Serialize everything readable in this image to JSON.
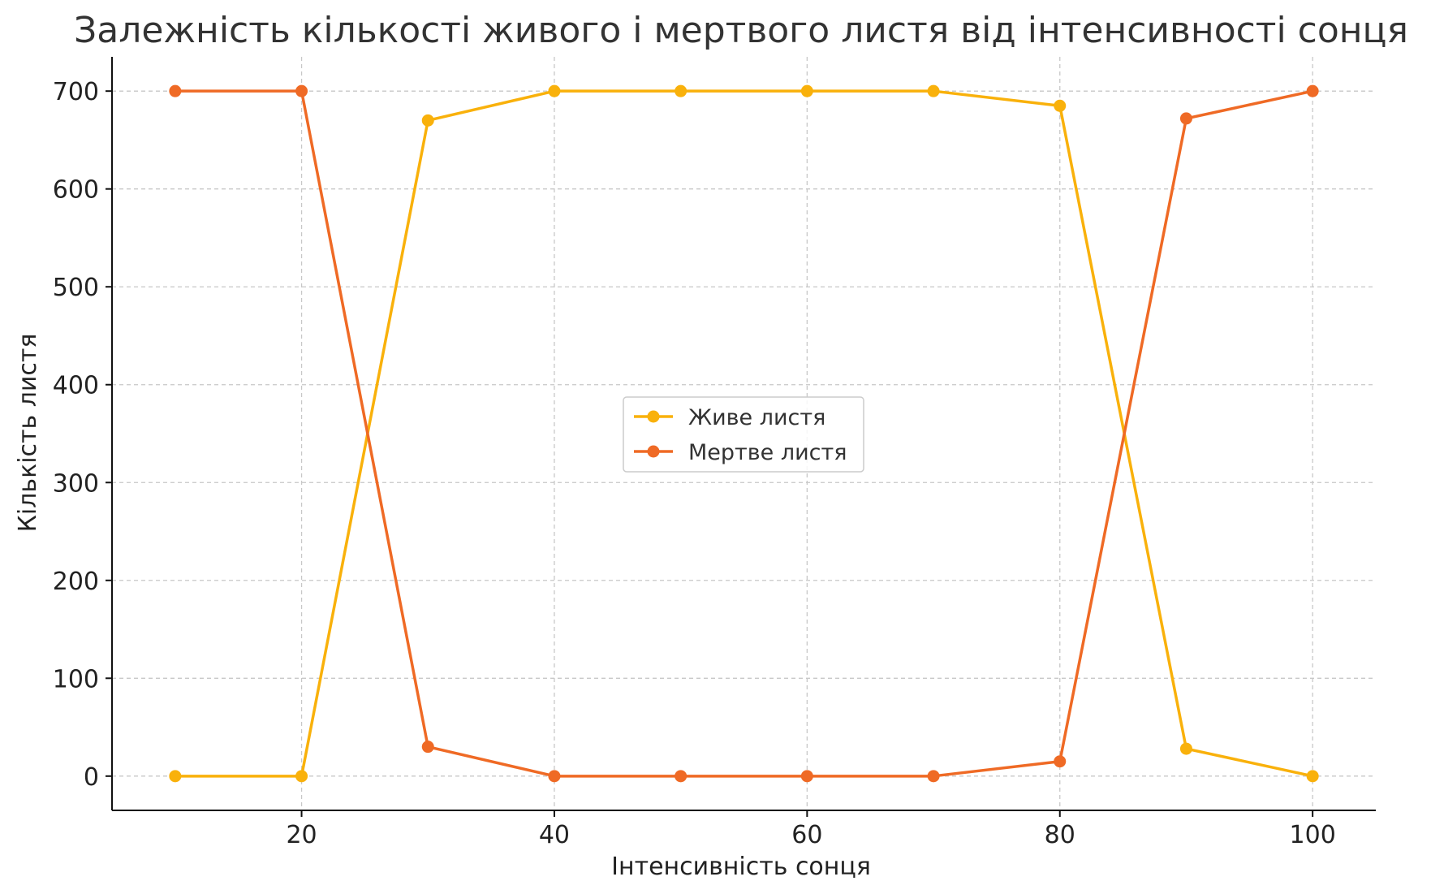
{
  "colors": {
    "live": "#F9B10B",
    "dead": "#EF6A25",
    "grid": "#c8c8c8",
    "axis": "#111111",
    "legend_border": "#cccccc"
  },
  "chart_data": {
    "type": "line",
    "title": "Залежність кількості живого і мертвого листя від інтенсивності сонця",
    "xlabel": "Інтенсивність сонця",
    "ylabel": "Кількість листя",
    "x": [
      10,
      20,
      30,
      40,
      50,
      60,
      70,
      80,
      90,
      100
    ],
    "xlim": [
      5,
      105
    ],
    "ylim": [
      -35,
      735
    ],
    "xticks": [
      20,
      40,
      60,
      80,
      100
    ],
    "yticks": [
      0,
      100,
      200,
      300,
      400,
      500,
      600,
      700
    ],
    "grid": true,
    "legend_position": "center",
    "series": [
      {
        "name": "Живе листя",
        "color_key": "live",
        "values": [
          0,
          0,
          670,
          700,
          700,
          700,
          700,
          685,
          28,
          0
        ]
      },
      {
        "name": "Мертве листя",
        "color_key": "dead",
        "values": [
          700,
          700,
          30,
          0,
          0,
          0,
          0,
          15,
          672,
          700
        ]
      }
    ]
  }
}
